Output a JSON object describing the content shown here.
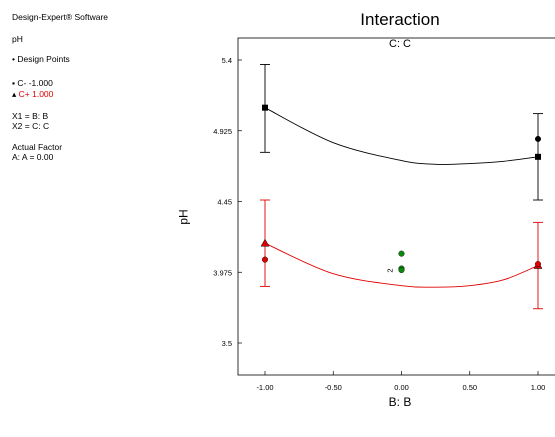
{
  "legend": {
    "software": "Design-Expert® Software",
    "response": "pH",
    "design_points": "Design Points",
    "series_low": "C- -1.000",
    "series_high": "C+ 1.000",
    "x1": "X1 = B: B",
    "x2": "X2 = C: C",
    "actual_factor_header": "Actual Factor",
    "actual_factor_value": "A: A = 0.00"
  },
  "chart_data": {
    "type": "line",
    "title": "Interaction",
    "subtitle": "C: C",
    "xlabel": "B: B",
    "ylabel": "pH",
    "xlim": [
      -1.0,
      1.0
    ],
    "ylim": [
      3.5,
      5.4
    ],
    "xticks": [
      "-1.00",
      "-0.50",
      "0.00",
      "0.50",
      "1.00"
    ],
    "yticks": [
      "3.5",
      "3.975",
      "4.45",
      "4.925",
      "5.4"
    ],
    "center_label": "2",
    "series": [
      {
        "name": "C- -1.000",
        "color": "#000000",
        "x": [
          -1.0,
          -0.5,
          0.0,
          0.25,
          0.5,
          0.75,
          1.0
        ],
        "y": [
          5.08,
          4.845,
          4.725,
          4.7,
          4.705,
          4.72,
          4.75
        ],
        "markers": [
          [
            -1.0,
            5.08
          ],
          [
            1.0,
            4.75
          ]
        ],
        "points": [
          [
            1.0,
            4.87
          ]
        ],
        "error_bars": [
          [
            -1.0,
            4.78,
            5.37
          ],
          [
            1.0,
            4.46,
            5.04
          ]
        ]
      },
      {
        "name": "C+ 1.000",
        "color": "#e00000",
        "x": [
          -1.0,
          -0.5,
          0.0,
          0.25,
          0.5,
          0.75,
          1.0
        ],
        "y": [
          4.17,
          3.965,
          3.885,
          3.875,
          3.885,
          3.925,
          4.02
        ],
        "markers": [
          [
            -1.0,
            4.17
          ],
          [
            1.0,
            4.02
          ]
        ],
        "points": [
          [
            -1.0,
            4.06
          ],
          [
            1.0,
            4.03
          ]
        ],
        "error_bars": [
          [
            -1.0,
            3.88,
            4.46
          ],
          [
            1.0,
            3.73,
            4.31
          ]
        ]
      }
    ],
    "center_points": {
      "color": "#0a8a0a",
      "values": [
        [
          0.0,
          4.1
        ],
        [
          0.0,
          4.0
        ],
        [
          0.0,
          3.99
        ]
      ]
    }
  }
}
